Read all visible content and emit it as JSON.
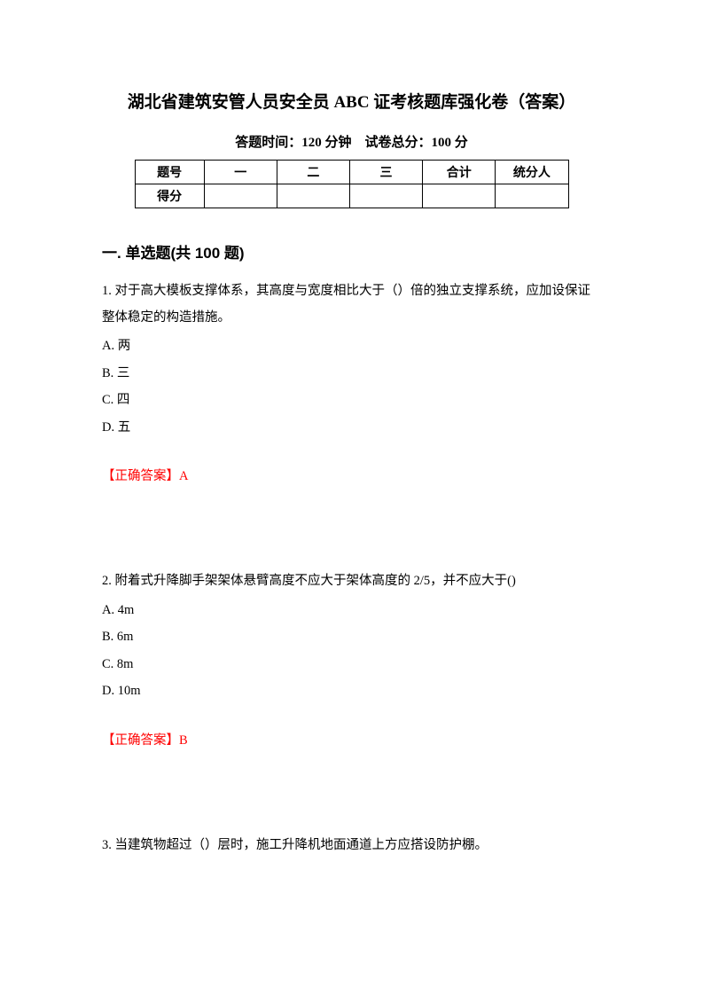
{
  "title": "湖北省建筑安管人员安全员 ABC 证考核题库强化卷（答案）",
  "subtitle": "答题时间：120 分钟 试卷总分：100 分",
  "score_table": {
    "row1": [
      "题号",
      "一",
      "二",
      "三",
      "合计",
      "统分人"
    ],
    "row2": [
      "得分",
      "",
      "",
      "",
      "",
      ""
    ]
  },
  "section_heading": "一. 单选题(共 100 题)",
  "questions": [
    {
      "text": "1. 对于高大模板支撑体系，其高度与宽度相比大于（）倍的独立支撑系统，应加设保证整体稳定的构造措施。",
      "options": [
        "A. 两",
        "B. 三",
        "C. 四",
        "D. 五"
      ],
      "answer_label": "【正确答案】",
      "answer_value": "A"
    },
    {
      "text": "2. 附着式升降脚手架架体悬臂高度不应大于架体高度的 2/5，并不应大于()",
      "options": [
        "A. 4m",
        "B. 6m",
        "C. 8m",
        "D. 10m"
      ],
      "answer_label": "【正确答案】",
      "answer_value": "B"
    },
    {
      "text": "3. 当建筑物超过（）层时，施工升降机地面通道上方应搭设防护棚。",
      "options": [],
      "answer_label": "",
      "answer_value": ""
    }
  ]
}
